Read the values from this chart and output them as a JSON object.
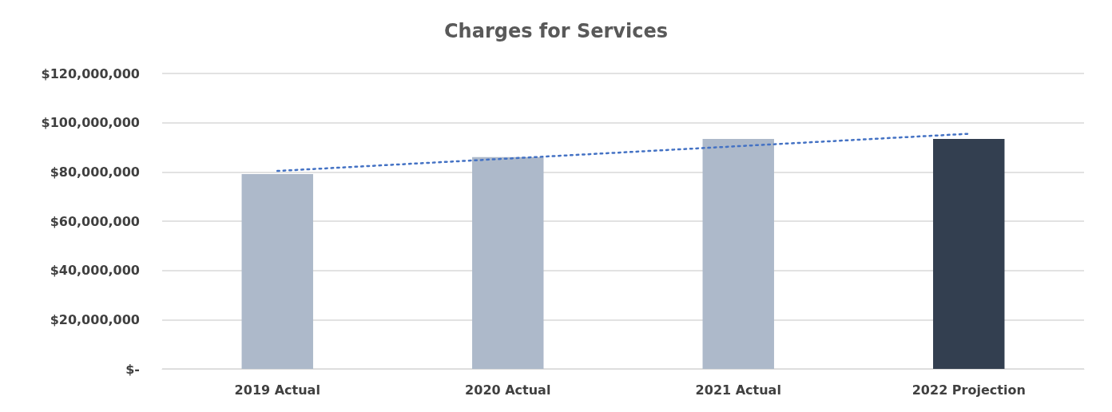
{
  "chart_data": {
    "type": "bar",
    "title": "Charges for Services",
    "categories": [
      "2019 Actual",
      "2020 Actual",
      "2021 Actual",
      "2022 Projection"
    ],
    "series": [
      {
        "values": [
          79100000,
          86000000,
          93400000,
          93400000
        ],
        "colors": [
          "#adb9ca",
          "#adb9ca",
          "#adb9ca",
          "#333f50"
        ]
      },
      {
        "type": "line",
        "x": [
          "2019 Actual",
          "2022 Projection"
        ],
        "values": [
          80400000,
          95500000
        ],
        "color": "#4472c4",
        "line_style": "dotted",
        "marker": "none"
      }
    ],
    "ylim": [
      0,
      120000000
    ],
    "yticks": [
      {
        "value": 0,
        "label": "$-"
      },
      {
        "value": 20000000,
        "label": "$20,000,000"
      },
      {
        "value": 40000000,
        "label": "$40,000,000"
      },
      {
        "value": 60000000,
        "label": "$60,000,000"
      },
      {
        "value": 80000000,
        "label": "$80,000,000"
      },
      {
        "value": 100000000,
        "label": "$100,000,000"
      },
      {
        "value": 120000000,
        "label": "$120,000,000"
      }
    ],
    "grid": "y"
  }
}
